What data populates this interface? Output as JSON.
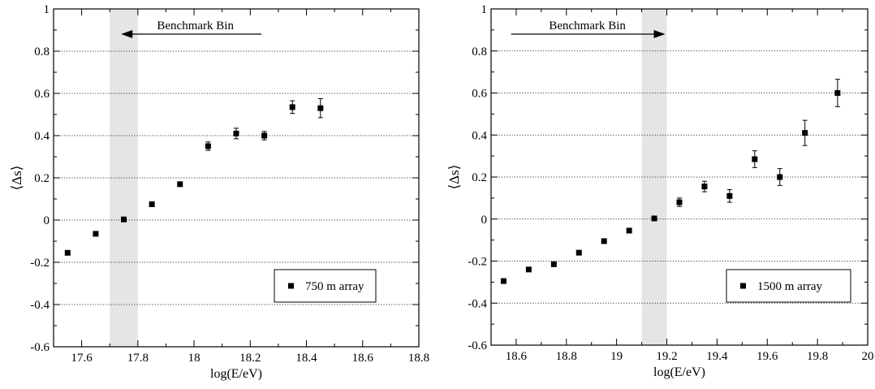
{
  "chart_data": [
    {
      "type": "scatter",
      "xlabel": "log(E/eV)",
      "ylabel": "⟨Δs⟩",
      "xlim": [
        17.5,
        18.8
      ],
      "ylim": [
        -0.6,
        1.0
      ],
      "x_ticks": [
        17.6,
        17.8,
        18.0,
        18.2,
        18.4,
        18.6,
        18.8
      ],
      "x_tick_labels": [
        "17.6",
        "17.8",
        "18",
        "18.2",
        "18.4",
        "18.6",
        "18.8"
      ],
      "y_ticks": [
        -0.6,
        -0.4,
        -0.2,
        0,
        0.2,
        0.4,
        0.6,
        0.8,
        1.0
      ],
      "y_tick_labels": [
        "-0.6",
        "-0.4",
        "-0.2",
        "0",
        "0.2",
        "0.4",
        "0.6",
        "0.8",
        "1"
      ],
      "grid": "horizontal dotted",
      "benchmark_bin": {
        "range": [
          17.7,
          17.8
        ],
        "label": "Benchmark Bin",
        "arrow": "left"
      },
      "legend_position": "bottom-right",
      "series": [
        {
          "name": "750 m array",
          "points": [
            {
              "x": 17.55,
              "y": -0.155,
              "err": 0.0
            },
            {
              "x": 17.65,
              "y": -0.065,
              "err": 0.0
            },
            {
              "x": 17.75,
              "y": 0.003,
              "err": 0.0
            },
            {
              "x": 17.85,
              "y": 0.075,
              "err": 0.0
            },
            {
              "x": 17.95,
              "y": 0.17,
              "err": 0.01
            },
            {
              "x": 18.05,
              "y": 0.35,
              "err": 0.02
            },
            {
              "x": 18.15,
              "y": 0.41,
              "err": 0.025
            },
            {
              "x": 18.25,
              "y": 0.4,
              "err": 0.02
            },
            {
              "x": 18.35,
              "y": 0.535,
              "err": 0.03
            },
            {
              "x": 18.45,
              "y": 0.53,
              "err": 0.045
            }
          ]
        }
      ]
    },
    {
      "type": "scatter",
      "xlabel": "log(E/eV)",
      "ylabel": "⟨Δs⟩",
      "xlim": [
        18.5,
        20.0
      ],
      "ylim": [
        -0.6,
        1.0
      ],
      "x_ticks": [
        18.6,
        18.8,
        19.0,
        19.2,
        19.4,
        19.6,
        19.8,
        20.0
      ],
      "x_tick_labels": [
        "18.6",
        "18.8",
        "19",
        "19.2",
        "19.4",
        "19.6",
        "19.8",
        "20"
      ],
      "y_ticks": [
        -0.6,
        -0.4,
        -0.2,
        0,
        0.2,
        0.4,
        0.6,
        0.8,
        1.0
      ],
      "y_tick_labels": [
        "-0.6",
        "-0.4",
        "-0.2",
        "0",
        "0.2",
        "0.4",
        "0.6",
        "0.8",
        "1"
      ],
      "grid": "horizontal dotted",
      "benchmark_bin": {
        "range": [
          19.1,
          19.2
        ],
        "label": "Benchmark Bin",
        "arrow": "right"
      },
      "legend_position": "bottom-right",
      "series": [
        {
          "name": "1500 m array",
          "points": [
            {
              "x": 18.55,
              "y": -0.295,
              "err": 0.0
            },
            {
              "x": 18.65,
              "y": -0.24,
              "err": 0.0
            },
            {
              "x": 18.75,
              "y": -0.215,
              "err": 0.0
            },
            {
              "x": 18.85,
              "y": -0.16,
              "err": 0.0
            },
            {
              "x": 18.95,
              "y": -0.105,
              "err": 0.0
            },
            {
              "x": 19.05,
              "y": -0.055,
              "err": 0.0
            },
            {
              "x": 19.15,
              "y": 0.003,
              "err": 0.01
            },
            {
              "x": 19.25,
              "y": 0.08,
              "err": 0.02
            },
            {
              "x": 19.35,
              "y": 0.155,
              "err": 0.025
            },
            {
              "x": 19.45,
              "y": 0.11,
              "err": 0.03
            },
            {
              "x": 19.55,
              "y": 0.285,
              "err": 0.04
            },
            {
              "x": 19.65,
              "y": 0.2,
              "err": 0.04
            },
            {
              "x": 19.75,
              "y": 0.41,
              "err": 0.06
            },
            {
              "x": 19.88,
              "y": 0.6,
              "err": 0.065
            }
          ]
        }
      ]
    }
  ]
}
